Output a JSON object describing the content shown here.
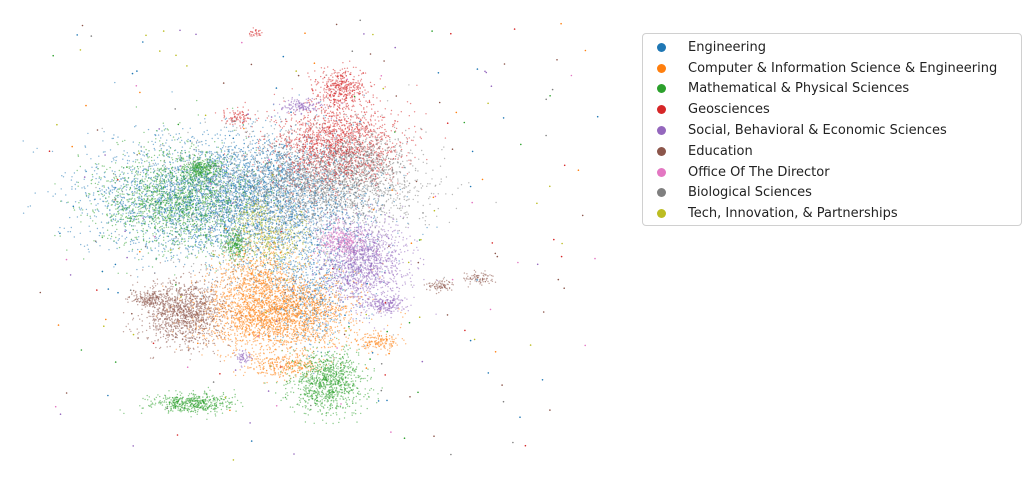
{
  "chart_data": {
    "type": "scatter",
    "title": "",
    "xlabel": "",
    "ylabel": "",
    "axes": "off",
    "legend": "top-right",
    "series": [
      {
        "name": "Engineering",
        "color": "#1f77b4"
      },
      {
        "name": "Computer & Information Science & Engineering",
        "color": "#ff7f0e"
      },
      {
        "name": "Mathematical & Physical Sciences",
        "color": "#2ca02c"
      },
      {
        "name": "Geosciences",
        "color": "#d62728"
      },
      {
        "name": "Social, Behavioral & Economic Sciences",
        "color": "#9467bd"
      },
      {
        "name": "Education",
        "color": "#8c564b"
      },
      {
        "name": "Office Of The Director",
        "color": "#e377c2"
      },
      {
        "name": "Biological Sciences",
        "color": "#7f7f7f"
      },
      {
        "name": "Tech, Innovation, & Partnerships",
        "color": "#bcbd22"
      }
    ]
  }
}
